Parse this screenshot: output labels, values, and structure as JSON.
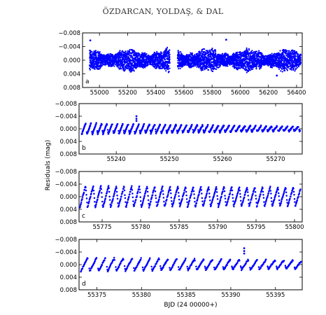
{
  "page": {
    "running_header": "ÖZDARCAN, YOLDAŞ, & DAL"
  },
  "chart_data": [
    {
      "type": "scatter",
      "panel_label": "a",
      "xlabel": "",
      "ylabel": "",
      "xlim": [
        54880,
        56440
      ],
      "ylim": [
        0.008,
        -0.008
      ],
      "xticks": [
        55000,
        55200,
        55400,
        55600,
        55800,
        56000,
        56200,
        56400
      ],
      "yticks": [
        -0.008,
        -0.004,
        0.0,
        0.004,
        0.008
      ],
      "color": "#0000ff",
      "segments": [
        {
          "x": [
            54930,
            55500
          ],
          "amplitude": 0.0032,
          "period": 3.0
        },
        {
          "x": [
            55555,
            56430
          ],
          "amplitude": 0.0032,
          "period": 3.0
        }
      ],
      "outliers": [
        {
          "x": 54935,
          "y": -0.0058
        },
        {
          "x": 55900,
          "y": -0.006
        },
        {
          "x": 55905,
          "y": 0.0005
        },
        {
          "x": 56260,
          "y": 0.0045
        }
      ]
    },
    {
      "type": "scatter",
      "panel_label": "b",
      "xlabel": "",
      "ylabel": "",
      "xlim": [
        55233,
        55275
      ],
      "ylim": [
        0.008,
        -0.008
      ],
      "xticks": [
        55240,
        55250,
        55260,
        55270
      ],
      "yticks": [
        -0.008,
        -0.004,
        0.0,
        0.004,
        0.008
      ],
      "color": "#0000ff",
      "segments": [
        {
          "x": [
            55233.5,
            55274.6
          ],
          "amplitude_start": 0.0018,
          "amplitude_end": 0.0007,
          "period": 1.0
        }
      ],
      "outliers": [
        {
          "x": 55243.8,
          "y": -0.004
        },
        {
          "x": 55243.8,
          "y": -0.0032
        },
        {
          "x": 55243.8,
          "y": -0.0025
        }
      ]
    },
    {
      "type": "scatter",
      "panel_label": "c",
      "xlabel": "",
      "ylabel": "Residuals (mag)",
      "xlim": [
        55772,
        55801
      ],
      "ylim": [
        0.008,
        -0.008
      ],
      "xticks": [
        55775,
        55780,
        55785,
        55790,
        55795,
        55800
      ],
      "yticks": [
        -0.008,
        -0.004,
        0.0,
        0.004,
        0.008
      ],
      "color": "#0000ff",
      "segments": [
        {
          "x": [
            55772.1,
            55800.8
          ],
          "amplitude_start": 0.0035,
          "amplitude_end": 0.003,
          "period": 1.0
        }
      ],
      "outliers": []
    },
    {
      "type": "scatter",
      "panel_label": "d",
      "xlabel": "BJD (24 00000+)",
      "ylabel": "",
      "xlim": [
        55373,
        55398
      ],
      "ylim": [
        0.008,
        -0.008
      ],
      "xticks": [
        55375,
        55380,
        55385,
        55390,
        55395
      ],
      "yticks": [
        -0.008,
        -0.004,
        0.0,
        0.004,
        0.008
      ],
      "color": "#0000ff",
      "segments": [
        {
          "x": [
            55373.2,
            55397.9
          ],
          "amplitude_start": 0.0022,
          "amplitude_end": 0.0014,
          "period": 1.0
        }
      ],
      "outliers": [
        {
          "x": 55391.5,
          "y": -0.0052
        },
        {
          "x": 55391.5,
          "y": -0.0043
        },
        {
          "x": 55391.5,
          "y": -0.0035
        }
      ]
    }
  ]
}
